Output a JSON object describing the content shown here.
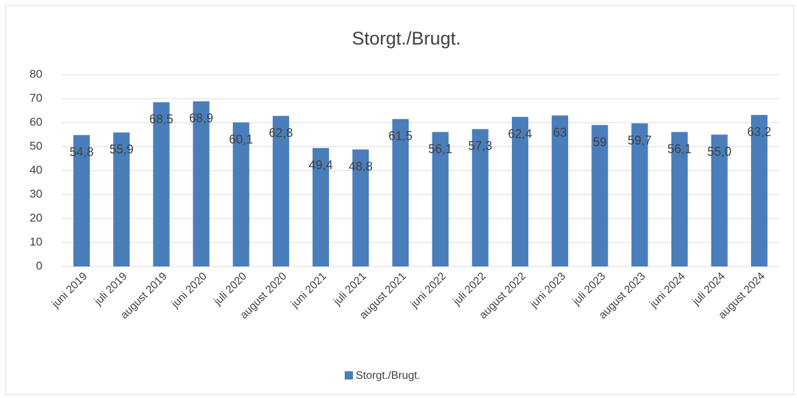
{
  "chart_data": {
    "type": "bar",
    "title": "Storgt./Brugt.",
    "categories": [
      "juni 2019",
      "juli 2019",
      "august 2019",
      "juni 2020",
      "juli 2020",
      "august 2020",
      "juni 2021",
      "juli 2021",
      "august 2021",
      "juni 2022",
      "juli 2022",
      "august 2022",
      "juni 2023",
      "juli 2023",
      "august 2023",
      "juni 2024",
      "juli 2024",
      "august 2024"
    ],
    "series": [
      {
        "name": "Storgt./Brugt.",
        "color": "#4a7ebb",
        "values": [
          54.8,
          55.9,
          68.5,
          68.9,
          60.1,
          62.8,
          49.4,
          48.8,
          61.5,
          56.1,
          57.3,
          62.4,
          63,
          59,
          59.7,
          56.1,
          55.0,
          63.2
        ],
        "value_labels": [
          "54,8",
          "55,9",
          "68,5",
          "68,9",
          "60,1",
          "62,8",
          "49,4",
          "48,8",
          "61,5",
          "56,1",
          "57,3",
          "62,4",
          "63",
          "59",
          "59,7",
          "56,1",
          "55,0",
          "63,2"
        ]
      }
    ],
    "ylim": [
      0,
      80
    ],
    "yticks": [
      0,
      10,
      20,
      30,
      40,
      50,
      60,
      70,
      80
    ],
    "grid": true,
    "legend": "bottom"
  }
}
